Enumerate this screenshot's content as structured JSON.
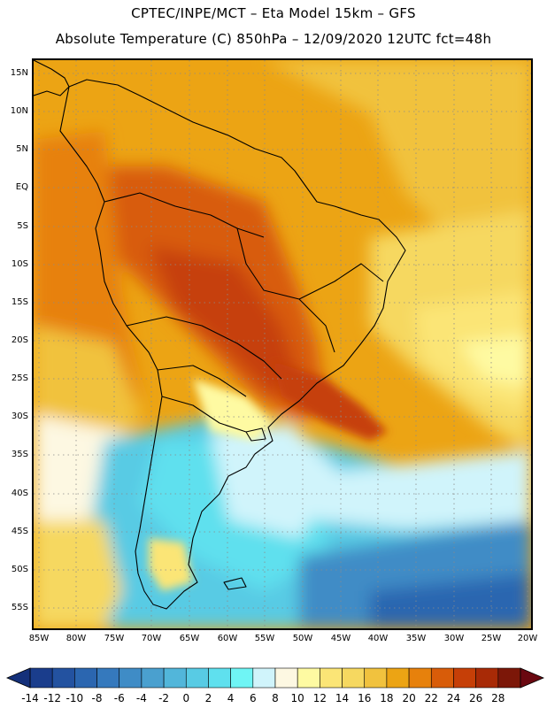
{
  "header": {
    "line1": "CPTEC/INPE/MCT –  Eta Model 15km – GFS",
    "line2": "Absolute Temperature (C) 850hPa – 12/09/2020 12UTC fct=48h"
  },
  "map": {
    "lat_labels": [
      "15N",
      "10N",
      "5N",
      "EQ",
      "5S",
      "10S",
      "15S",
      "20S",
      "25S",
      "30S",
      "35S",
      "40S",
      "45S",
      "50S",
      "55S"
    ],
    "lon_labels": [
      "85W",
      "80W",
      "75W",
      "70W",
      "65W",
      "60W",
      "55W",
      "50W",
      "45W",
      "40W",
      "35W",
      "30W",
      "25W",
      "20W"
    ]
  },
  "colorbar": {
    "labels": [
      "-14",
      "-12",
      "-10",
      "-8",
      "-6",
      "-4",
      "-2",
      "0",
      "2",
      "4",
      "6",
      "8",
      "10",
      "12",
      "14",
      "16",
      "18",
      "20",
      "22",
      "24",
      "26",
      "28"
    ],
    "colors": [
      "#1a3d8c",
      "#2352a0",
      "#2b66b0",
      "#3579bd",
      "#3f8cc6",
      "#4aa0cf",
      "#52b6da",
      "#58cbe4",
      "#5fe0ee",
      "#6ff5f5",
      "#d0f4fb",
      "#fdf8e2",
      "#fefaa2",
      "#fbe576",
      "#f6d860",
      "#f1c23e",
      "#eca414",
      "#e7810c",
      "#d85c09",
      "#c63f07",
      "#a82a06",
      "#7c1708"
    ],
    "under_color": "#14307a",
    "over_color": "#6a0810"
  }
}
